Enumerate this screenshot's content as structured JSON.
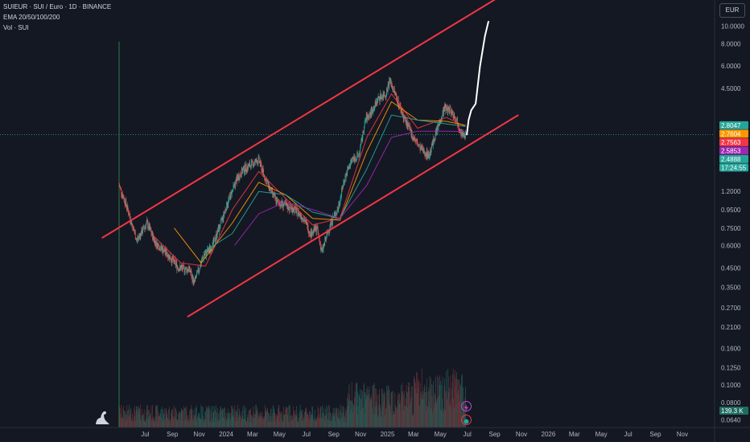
{
  "header": {
    "symbol_line": "SUIEUR · SUI / Euro · 1D · BINANCE",
    "indicator_ema": "EMA 20/50/100/200",
    "indicator_vol": "Vol · SUI"
  },
  "currency_label": "EUR",
  "colors": {
    "background": "#141823",
    "channel": "#f23645",
    "projection": "#ffffff",
    "ema20": "#f23645",
    "ema50": "#ff9800",
    "ema100": "#26a69a",
    "ema200": "#9c27b0",
    "up": "#26a69a",
    "down": "#ef5350",
    "volume_up": "#1f5b56",
    "volume_down": "#6b2f35",
    "crosshair": "#2f7d44"
  },
  "chart_data": {
    "type": "candlestick",
    "y_scale": "log",
    "ylim": [
      0.058,
      14.0
    ],
    "x_range": [
      "2023-05-03",
      "2026-12-15"
    ],
    "y_ticks": [
      "10.0000",
      "8.0000",
      "6.0000",
      "4.5000",
      "1.6000",
      "1.2000",
      "0.9500",
      "0.7500",
      "0.6000",
      "0.4500",
      "0.3500",
      "0.2700",
      "0.2100",
      "0.1600",
      "0.1250",
      "0.1000",
      "0.0800",
      "0.0640"
    ],
    "x_ticks": [
      {
        "label": "Jul",
        "date": "2023-07-01"
      },
      {
        "label": "Sep",
        "date": "2023-09-01"
      },
      {
        "label": "Nov",
        "date": "2023-11-01"
      },
      {
        "label": "2024",
        "date": "2024-01-01"
      },
      {
        "label": "Mar",
        "date": "2024-03-01"
      },
      {
        "label": "May",
        "date": "2024-05-01"
      },
      {
        "label": "Jul",
        "date": "2024-07-01"
      },
      {
        "label": "Sep",
        "date": "2024-09-01"
      },
      {
        "label": "Nov",
        "date": "2024-11-01"
      },
      {
        "label": "2025",
        "date": "2025-01-01"
      },
      {
        "label": "Mar",
        "date": "2025-03-01"
      },
      {
        "label": "May",
        "date": "2025-05-01"
      },
      {
        "label": "Jul",
        "date": "2025-07-01"
      },
      {
        "label": "Sep",
        "date": "2025-09-01"
      },
      {
        "label": "Nov",
        "date": "2025-11-01"
      },
      {
        "label": "2026",
        "date": "2026-01-01"
      },
      {
        "label": "Mar",
        "date": "2026-03-01"
      },
      {
        "label": "May",
        "date": "2026-05-01"
      },
      {
        "label": "Jul",
        "date": "2026-07-01"
      },
      {
        "label": "Sep",
        "date": "2026-09-01"
      },
      {
        "label": "Nov",
        "date": "2026-11-01"
      }
    ],
    "price_path": [
      [
        "2023-05-03",
        1.3
      ],
      [
        "2023-05-20",
        1.0
      ],
      [
        "2023-06-12",
        0.64
      ],
      [
        "2023-07-05",
        0.8
      ],
      [
        "2023-07-25",
        0.62
      ],
      [
        "2023-08-20",
        0.54
      ],
      [
        "2023-09-15",
        0.45
      ],
      [
        "2023-10-10",
        0.44
      ],
      [
        "2023-10-20",
        0.37
      ],
      [
        "2023-11-10",
        0.52
      ],
      [
        "2023-12-01",
        0.6
      ],
      [
        "2023-12-20",
        0.8
      ],
      [
        "2024-01-05",
        1.05
      ],
      [
        "2024-01-25",
        1.4
      ],
      [
        "2024-02-10",
        1.6
      ],
      [
        "2024-02-28",
        1.7
      ],
      [
        "2024-03-15",
        1.8
      ],
      [
        "2024-03-28",
        1.45
      ],
      [
        "2024-04-12",
        1.2
      ],
      [
        "2024-04-25",
        1.05
      ],
      [
        "2024-05-15",
        1.0
      ],
      [
        "2024-06-05",
        0.95
      ],
      [
        "2024-06-25",
        0.85
      ],
      [
        "2024-07-10",
        0.7
      ],
      [
        "2024-07-25",
        0.75
      ],
      [
        "2024-08-05",
        0.55
      ],
      [
        "2024-08-25",
        0.8
      ],
      [
        "2024-09-10",
        0.95
      ],
      [
        "2024-09-25",
        1.4
      ],
      [
        "2024-10-12",
        1.8
      ],
      [
        "2024-10-28",
        1.9
      ],
      [
        "2024-11-12",
        3.0
      ],
      [
        "2024-11-28",
        3.4
      ],
      [
        "2024-12-12",
        4.0
      ],
      [
        "2024-12-28",
        4.2
      ],
      [
        "2025-01-06",
        5.0
      ],
      [
        "2025-01-20",
        4.1
      ],
      [
        "2025-02-05",
        3.2
      ],
      [
        "2025-02-25",
        2.5
      ],
      [
        "2025-03-15",
        2.1
      ],
      [
        "2025-04-05",
        1.9
      ],
      [
        "2025-04-20",
        2.5
      ],
      [
        "2025-05-10",
        3.5
      ],
      [
        "2025-05-25",
        3.4
      ],
      [
        "2025-06-10",
        2.9
      ],
      [
        "2025-06-22",
        2.4
      ],
      [
        "2025-06-27",
        2.4888
      ]
    ],
    "ema_values": {
      "ema20": [
        [
          "2023-07-20",
          0.68
        ],
        [
          "2023-09-20",
          0.48
        ],
        [
          "2023-11-15",
          0.46
        ],
        [
          "2024-01-15",
          0.95
        ],
        [
          "2024-03-15",
          1.55
        ],
        [
          "2024-05-15",
          1.1
        ],
        [
          "2024-07-15",
          0.78
        ],
        [
          "2024-09-15",
          0.85
        ],
        [
          "2024-11-15",
          2.4
        ],
        [
          "2025-01-10",
          4.2
        ],
        [
          "2025-03-10",
          2.7
        ],
        [
          "2025-05-15",
          3.1
        ],
        [
          "2025-06-27",
          2.7563
        ]
      ],
      "ema50": [
        [
          "2023-09-05",
          0.75
        ],
        [
          "2023-11-05",
          0.48
        ],
        [
          "2024-01-15",
          0.8
        ],
        [
          "2024-03-15",
          1.35
        ],
        [
          "2024-05-15",
          1.15
        ],
        [
          "2024-07-15",
          0.85
        ],
        [
          "2024-09-15",
          0.83
        ],
        [
          "2024-11-15",
          2.0
        ],
        [
          "2025-01-10",
          3.8
        ],
        [
          "2025-03-10",
          3.0
        ],
        [
          "2025-05-15",
          2.95
        ],
        [
          "2025-06-27",
          2.8047
        ]
      ],
      "ema100": [
        [
          "2023-11-10",
          0.55
        ],
        [
          "2024-01-15",
          0.7
        ],
        [
          "2024-03-15",
          1.2
        ],
        [
          "2024-05-15",
          1.15
        ],
        [
          "2024-07-15",
          0.92
        ],
        [
          "2024-09-15",
          0.85
        ],
        [
          "2024-11-15",
          1.6
        ],
        [
          "2025-01-10",
          3.2
        ],
        [
          "2025-03-10",
          3.0
        ],
        [
          "2025-05-15",
          2.85
        ],
        [
          "2025-06-27",
          2.7604
        ]
      ],
      "ema200": [
        [
          "2024-01-20",
          0.6
        ],
        [
          "2024-03-15",
          0.9
        ],
        [
          "2024-05-15",
          1.05
        ],
        [
          "2024-07-15",
          0.95
        ],
        [
          "2024-09-15",
          0.85
        ],
        [
          "2024-11-15",
          1.3
        ],
        [
          "2025-01-10",
          2.4
        ],
        [
          "2025-03-10",
          2.6
        ],
        [
          "2025-05-15",
          2.6
        ],
        [
          "2025-06-27",
          2.5853
        ]
      ]
    },
    "channel_upper": [
      [
        "2023-03-25",
        0.66
      ],
      [
        "2025-09-20",
        15.0
      ]
    ],
    "channel_lower": [
      [
        "2023-10-05",
        0.24
      ],
      [
        "2025-10-25",
        3.2
      ]
    ],
    "projection_path": [
      [
        "2025-06-30",
        2.49
      ],
      [
        "2025-07-04",
        3.0
      ],
      [
        "2025-07-10",
        3.4
      ],
      [
        "2025-07-20",
        3.7
      ],
      [
        "2025-07-30",
        6.0
      ],
      [
        "2025-08-10",
        8.8
      ],
      [
        "2025-08-18",
        10.6
      ]
    ],
    "price_labels": [
      {
        "value": 2.8047,
        "text": "2.8047",
        "color": "#26a69a",
        "text_color": "#141823"
      },
      {
        "value": 2.7604,
        "text": "2.7604",
        "color": "#ff9800",
        "text_color": "#141823"
      },
      {
        "value": 2.7563,
        "text": "2.7563",
        "color": "#f23645",
        "text_color": "#ffffff"
      },
      {
        "value": 2.5853,
        "text": "2.5853",
        "color": "#9c27b0",
        "text_color": "#ffffff"
      },
      {
        "value": 2.4888,
        "text": "2.4888",
        "color": "#26a69a",
        "text_color": "#ffffff"
      }
    ],
    "last_price": 2.4888,
    "countdown": "17:24:55",
    "volume_label": "139.3 K",
    "volume_spike_date": "2023-05-03"
  }
}
